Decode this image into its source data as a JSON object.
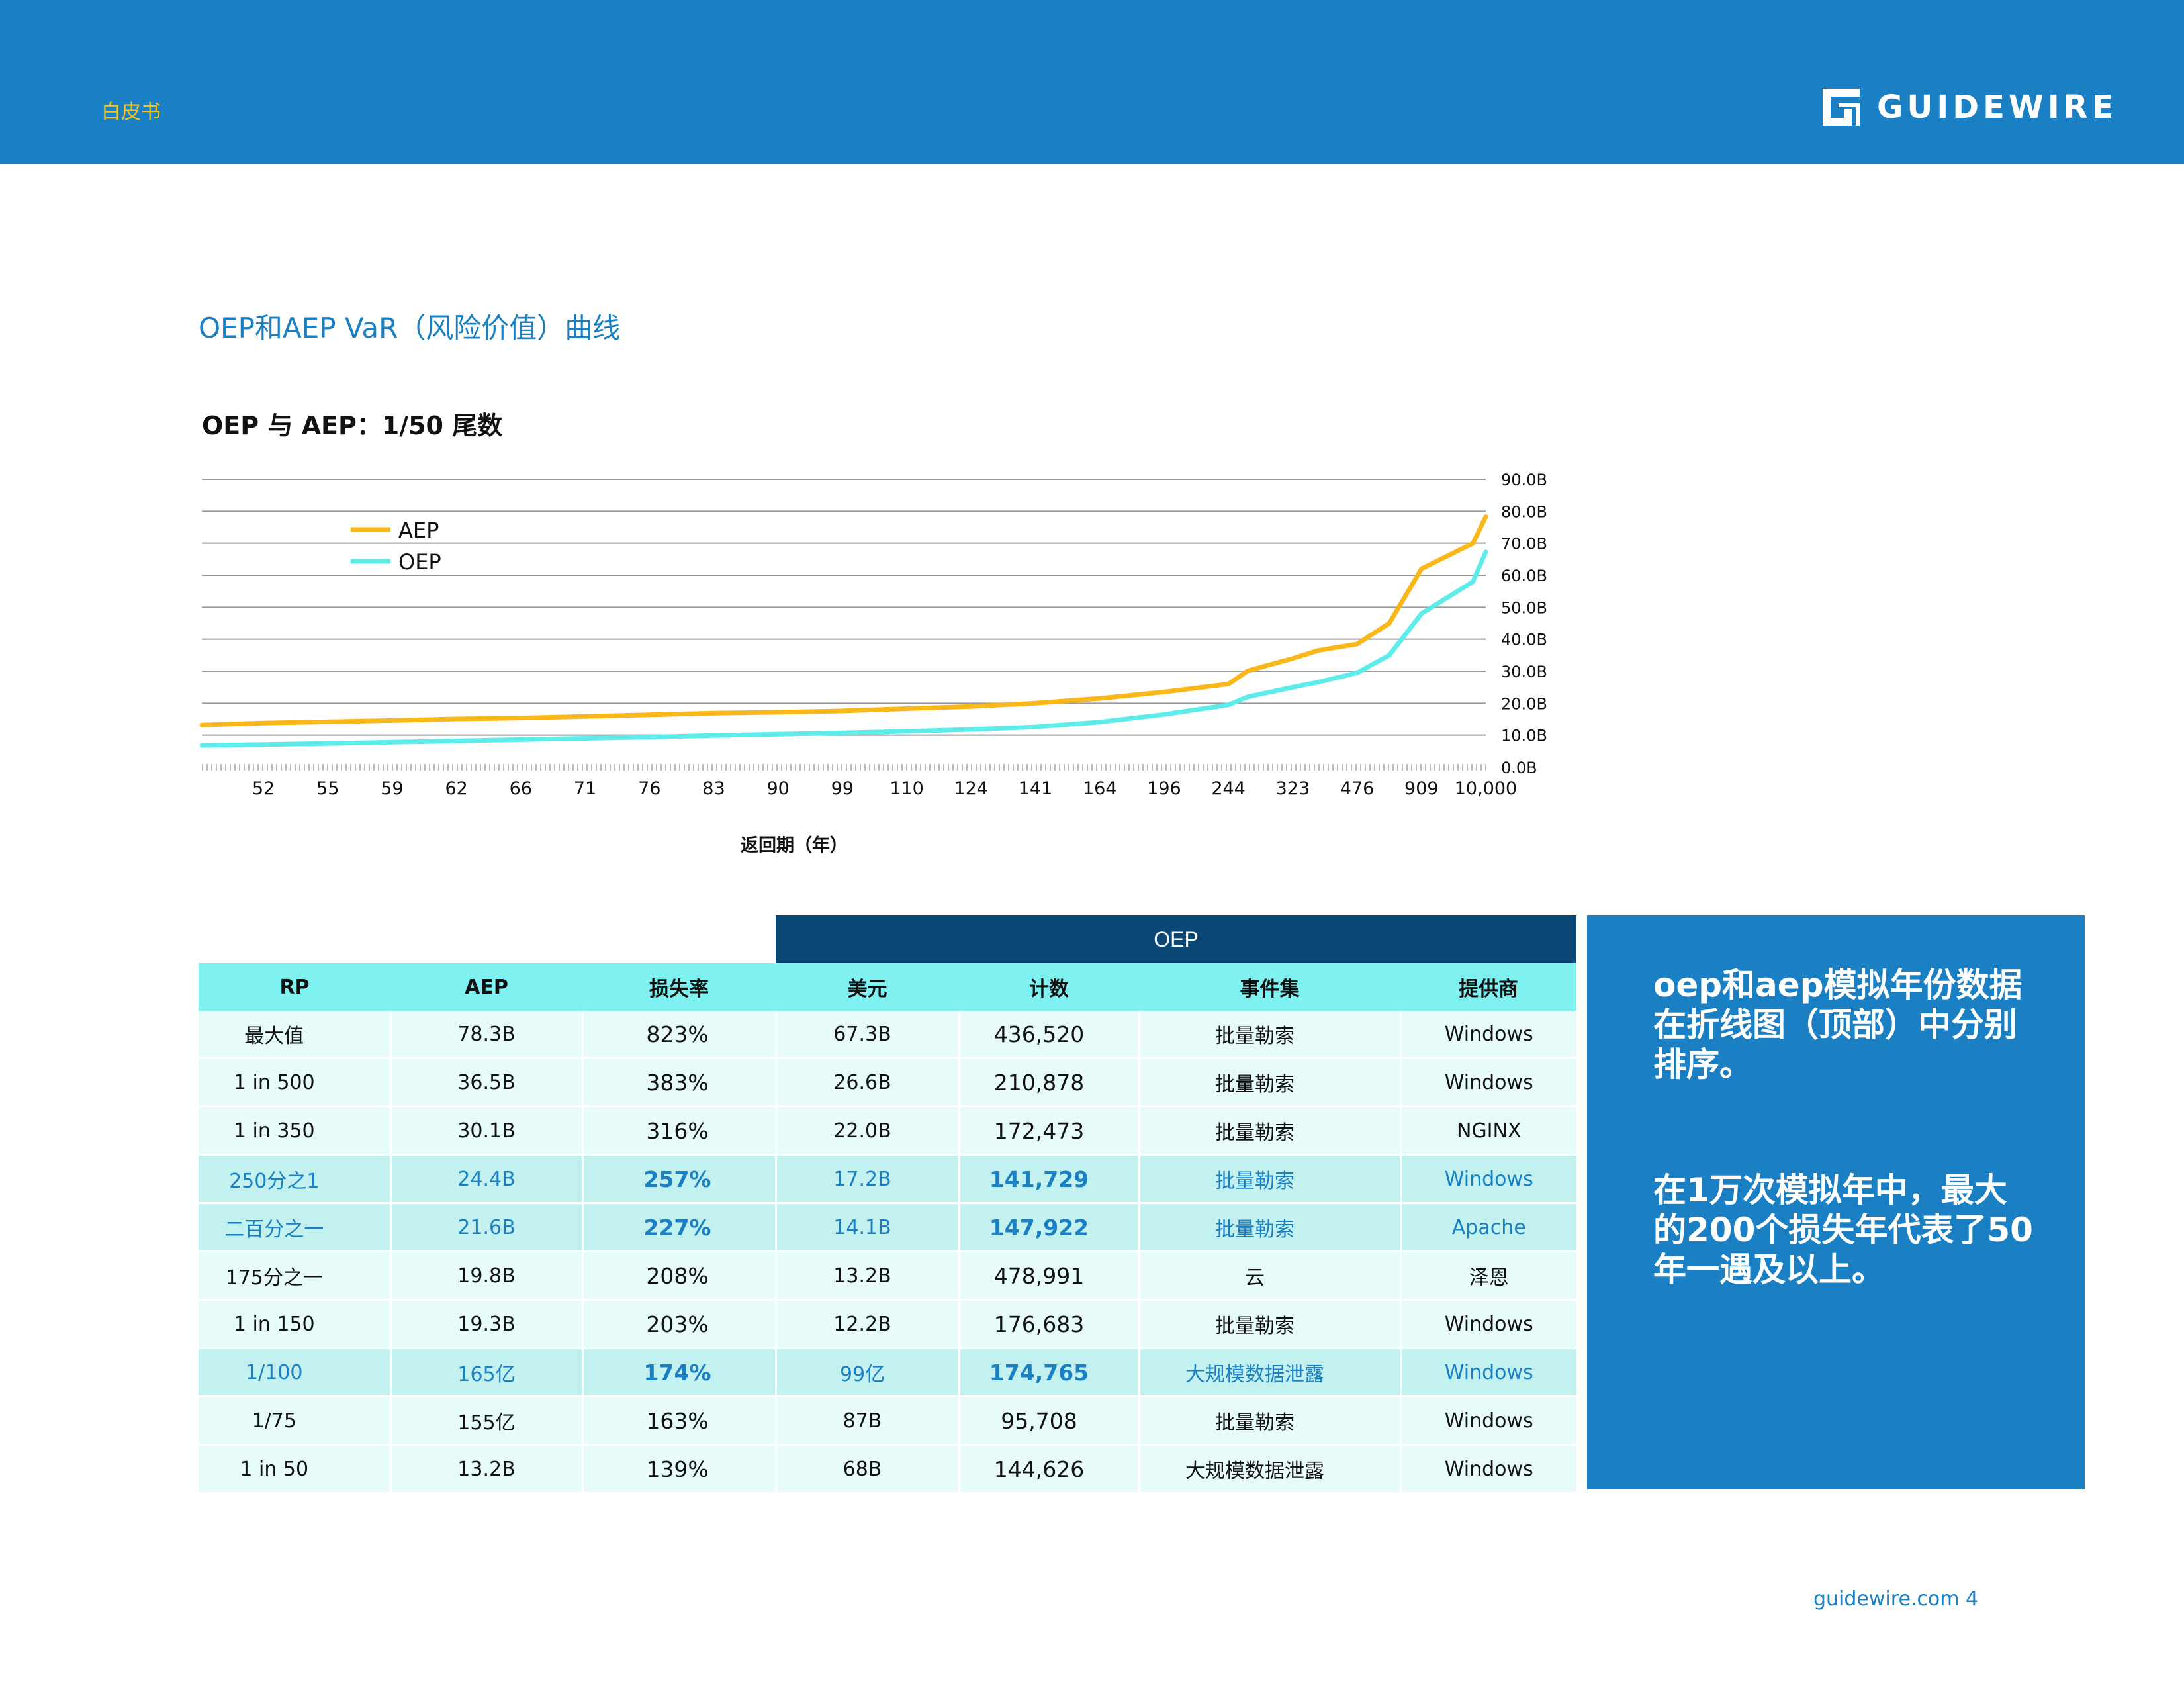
{
  "header": {
    "tag": "白皮书",
    "logo_text": "GUIDEWIRE"
  },
  "section_title": "OEP和AEP VaR（风险价值）曲线",
  "chart_title": "OEP 与 AEP：1/50 尾数",
  "chart_data": {
    "type": "line",
    "title": "OEP 与 AEP：1/50 尾数",
    "xlabel": "返回期（年）",
    "ylabel": "",
    "ylim": [
      0,
      90
    ],
    "y_ticks": [
      "0.0B",
      "10.0B",
      "20.0B",
      "30.0B",
      "40.0B",
      "50.0B",
      "60.0B",
      "70.0B",
      "80.0B",
      "90.0B"
    ],
    "x_ticks": [
      "52",
      "55",
      "59",
      "62",
      "66",
      "71",
      "76",
      "83",
      "90",
      "99",
      "110",
      "124",
      "141",
      "164",
      "196",
      "244",
      "323",
      "476",
      "909",
      "10,000"
    ],
    "grid": true,
    "legend_position": "top-left",
    "series": [
      {
        "name": "AEP",
        "color": "#f9b71a",
        "points": [
          [
            0,
            13.2
          ],
          [
            1,
            13.8
          ],
          [
            2,
            14.2
          ],
          [
            3,
            14.6
          ],
          [
            4,
            15.1
          ],
          [
            5,
            15.4
          ],
          [
            6,
            15.9
          ],
          [
            7,
            16.4
          ],
          [
            8,
            16.9
          ],
          [
            9,
            17.2
          ],
          [
            10,
            17.6
          ],
          [
            11,
            18.3
          ],
          [
            12,
            19.0
          ],
          [
            13,
            20.0
          ],
          [
            14,
            21.5
          ],
          [
            15,
            23.5
          ],
          [
            16,
            26.0
          ],
          [
            16.3,
            30.1
          ],
          [
            17,
            34.0
          ],
          [
            17.4,
            36.5
          ],
          [
            18,
            38.5
          ],
          [
            18.5,
            45
          ],
          [
            19,
            62
          ],
          [
            19.8,
            70
          ],
          [
            20,
            78.3
          ]
        ]
      },
      {
        "name": "OEP",
        "color": "#5eecea",
        "points": [
          [
            0,
            6.8
          ],
          [
            1,
            7.1
          ],
          [
            2,
            7.4
          ],
          [
            3,
            7.8
          ],
          [
            4,
            8.2
          ],
          [
            5,
            8.6
          ],
          [
            6,
            9.0
          ],
          [
            7,
            9.4
          ],
          [
            8,
            9.9
          ],
          [
            9,
            10.3
          ],
          [
            10,
            10.7
          ],
          [
            11,
            11.2
          ],
          [
            12,
            11.8
          ],
          [
            13,
            12.6
          ],
          [
            14,
            14.1
          ],
          [
            15,
            16.5
          ],
          [
            16,
            19.5
          ],
          [
            16.3,
            22.0
          ],
          [
            17,
            25.0
          ],
          [
            17.4,
            26.6
          ],
          [
            18,
            29.5
          ],
          [
            18.5,
            35
          ],
          [
            19,
            48
          ],
          [
            19.8,
            58
          ],
          [
            20,
            67.3
          ]
        ]
      }
    ]
  },
  "table": {
    "oep_group_label": "OEP",
    "headers": [
      "RP",
      "AEP",
      "损失率",
      "美元",
      "计数",
      "事件集",
      "提供商"
    ],
    "rows": [
      [
        "最大值",
        "78.3B",
        "823%",
        "67.3B",
        "436,520",
        "批量勒索",
        "Windows"
      ],
      [
        "1 in 500",
        "36.5B",
        "383%",
        "26.6B",
        "210,878",
        "批量勒索",
        "Windows"
      ],
      [
        "1 in 350",
        "30.1B",
        "316%",
        "22.0B",
        "172,473",
        "批量勒索",
        "NGINX"
      ],
      [
        "250分之1",
        "24.4B",
        "257%",
        "17.2B",
        "141,729",
        "批量勒索",
        "Windows"
      ],
      [
        "二百分之一",
        "21.6B",
        "227%",
        "14.1B",
        "147,922",
        "批量勒索",
        "Apache"
      ],
      [
        "175分之一",
        "19.8B",
        "208%",
        "13.2B",
        "478,991",
        "云",
        "泽恩"
      ],
      [
        "1 in 150",
        "19.3B",
        "203%",
        "12.2B",
        "176,683",
        "批量勒索",
        "Windows"
      ],
      [
        "1/100",
        "165亿",
        "174%",
        "99亿",
        "174,765",
        "大规模数据泄露",
        "Windows"
      ],
      [
        "1/75",
        "155亿",
        "163%",
        "87B",
        "95,708",
        "批量勒索",
        "Windows"
      ],
      [
        "1 in 50",
        "13.2B",
        "139%",
        "68B",
        "144,626",
        "大规模数据泄露",
        "Windows"
      ]
    ]
  },
  "sidebar": {
    "paragraph1": "oep和aep模拟年份数据在折线图（顶部）中分别排序。",
    "paragraph2": "在1万次模拟年中，最大的200个损失年代表了50年一遇及以上。"
  },
  "footer": "guidewire.com 4"
}
